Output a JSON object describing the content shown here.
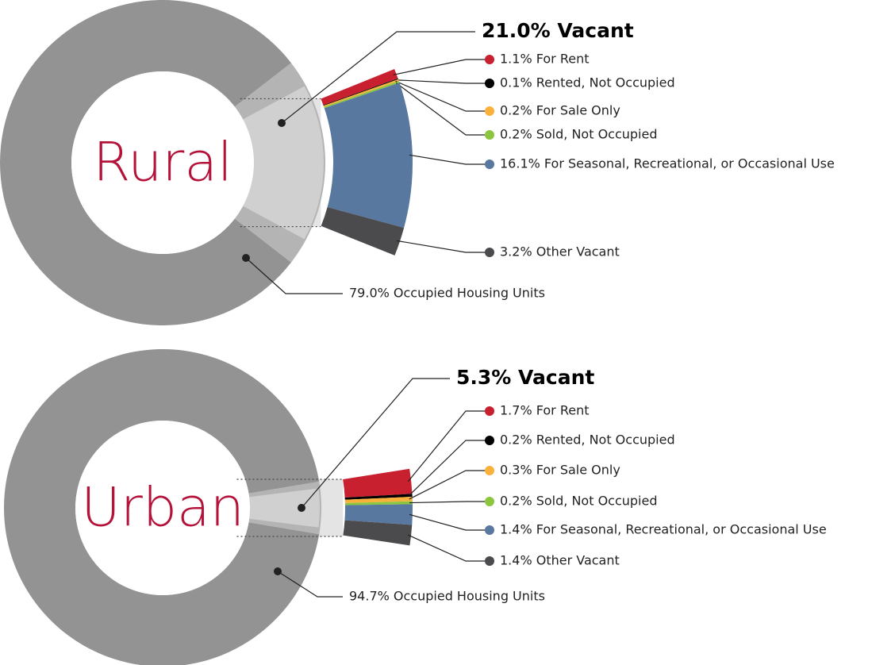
{
  "chart_data": [
    {
      "type": "donut",
      "center_label": "Rural",
      "occupied": {
        "value": 79.0,
        "label": "79.0% Occupied Housing Units",
        "color": "#939393"
      },
      "vacant": {
        "value": 21.0,
        "label": "21.0% Vacant",
        "color": "#b4b4b4"
      },
      "breakdown": {
        "categories": [
          "1.1% For Rent",
          "0.1% Rented, Not Occupied",
          "0.2% For Sale Only",
          "0.2% Sold, Not Occupied",
          "16.1% For Seasonal, Recreational, or Occasional Use",
          "3.2% Other Vacant"
        ],
        "values": [
          1.1,
          0.1,
          0.2,
          0.2,
          16.1,
          3.2
        ],
        "colors": [
          "#c8202f",
          "#000000",
          "#f9b13b",
          "#8cc63f",
          "#5878a0",
          "#4b4b4d"
        ]
      }
    },
    {
      "type": "donut",
      "center_label": "Urban",
      "occupied": {
        "value": 94.7,
        "label": "94.7% Occupied Housing Units",
        "color": "#939393"
      },
      "vacant": {
        "value": 5.3,
        "label": "5.3% Vacant",
        "color": "#b4b4b4"
      },
      "breakdown": {
        "categories": [
          "1.7% For Rent",
          "0.2% Rented, Not Occupied",
          "0.3% For Sale Only",
          "0.2% Sold, Not Occupied",
          "1.4% For Seasonal, Recreational, or Occasional Use",
          "1.4% Other Vacant"
        ],
        "values": [
          1.7,
          0.2,
          0.3,
          0.2,
          1.4,
          1.4
        ],
        "colors": [
          "#c8202f",
          "#000000",
          "#f9b13b",
          "#8cc63f",
          "#5878a0",
          "#4b4b4d"
        ]
      }
    }
  ]
}
